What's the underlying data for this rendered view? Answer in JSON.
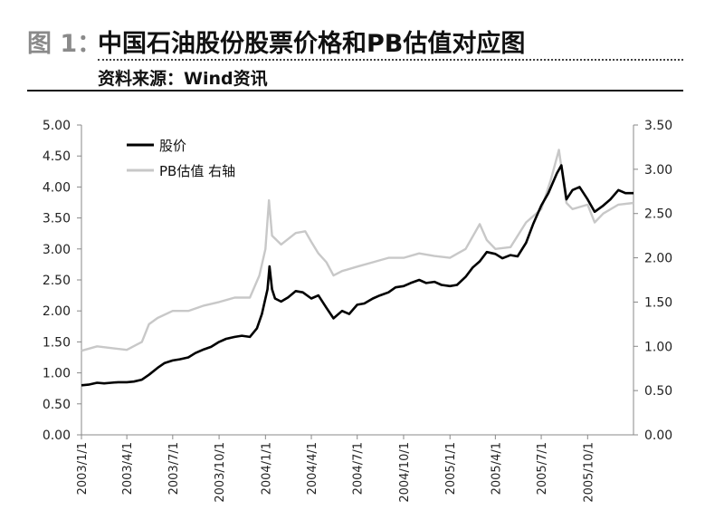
{
  "header": {
    "figure_label": "图 1：",
    "title": "中国石油股份股票价格和PB估值对应图",
    "source": "资料来源：Wind资讯"
  },
  "colors": {
    "price_series": "#000000",
    "pb_series": "#c8c8c8",
    "axis": "#888888"
  },
  "chart_data": {
    "type": "line",
    "x_start": "2003/1/1",
    "x_end": "2005/12/31",
    "x_ticks": [
      "2003/1/1",
      "2003/4/1",
      "2003/7/1",
      "2003/10/1",
      "2004/1/1",
      "2004/4/1",
      "2004/7/1",
      "2004/10/1",
      "2005/1/1",
      "2005/4/1",
      "2005/7/1",
      "2005/10/1"
    ],
    "y_left": {
      "lim": [
        0,
        5
      ],
      "ticks": [
        "0.00",
        "0.50",
        "1.00",
        "1.50",
        "2.00",
        "2.50",
        "3.00",
        "3.50",
        "4.00",
        "4.50",
        "5.00"
      ]
    },
    "y_right": {
      "lim": [
        0,
        3.5
      ],
      "ticks": [
        "0.00",
        "0.50",
        "1.00",
        "1.50",
        "2.00",
        "2.50",
        "3.00",
        "3.50"
      ]
    },
    "grid": false,
    "legend_position": "top-left",
    "series": [
      {
        "name": "股价",
        "axis": "left",
        "points": [
          [
            "2003/1/1",
            0.8
          ],
          [
            "2003/1/15",
            0.81
          ],
          [
            "2003/2/1",
            0.84
          ],
          [
            "2003/2/15",
            0.83
          ],
          [
            "2003/3/1",
            0.84
          ],
          [
            "2003/3/15",
            0.85
          ],
          [
            "2003/4/1",
            0.85
          ],
          [
            "2003/4/15",
            0.86
          ],
          [
            "2003/5/1",
            0.89
          ],
          [
            "2003/5/15",
            0.97
          ],
          [
            "2003/6/1",
            1.08
          ],
          [
            "2003/6/15",
            1.16
          ],
          [
            "2003/7/1",
            1.2
          ],
          [
            "2003/7/15",
            1.22
          ],
          [
            "2003/8/1",
            1.25
          ],
          [
            "2003/8/15",
            1.32
          ],
          [
            "2003/9/1",
            1.38
          ],
          [
            "2003/9/15",
            1.42
          ],
          [
            "2003/10/1",
            1.5
          ],
          [
            "2003/10/15",
            1.55
          ],
          [
            "2003/11/1",
            1.58
          ],
          [
            "2003/11/15",
            1.6
          ],
          [
            "2003/12/1",
            1.58
          ],
          [
            "2003/12/15",
            1.72
          ],
          [
            "2003/12/25",
            1.95
          ],
          [
            "2004/1/5",
            2.35
          ],
          [
            "2004/1/9",
            2.72
          ],
          [
            "2004/1/14",
            2.35
          ],
          [
            "2004/1/20",
            2.2
          ],
          [
            "2004/2/1",
            2.15
          ],
          [
            "2004/2/15",
            2.22
          ],
          [
            "2004/3/1",
            2.32
          ],
          [
            "2004/3/15",
            2.3
          ],
          [
            "2004/4/1",
            2.2
          ],
          [
            "2004/4/15",
            2.25
          ],
          [
            "2004/5/1",
            2.05
          ],
          [
            "2004/5/15",
            1.88
          ],
          [
            "2004/6/1",
            2.0
          ],
          [
            "2004/6/15",
            1.95
          ],
          [
            "2004/7/1",
            2.1
          ],
          [
            "2004/7/15",
            2.12
          ],
          [
            "2004/8/1",
            2.2
          ],
          [
            "2004/8/15",
            2.25
          ],
          [
            "2004/9/1",
            2.3
          ],
          [
            "2004/9/15",
            2.38
          ],
          [
            "2004/10/1",
            2.4
          ],
          [
            "2004/10/15",
            2.45
          ],
          [
            "2004/11/1",
            2.5
          ],
          [
            "2004/11/15",
            2.45
          ],
          [
            "2004/12/1",
            2.47
          ],
          [
            "2004/12/15",
            2.42
          ],
          [
            "2005/1/1",
            2.4
          ],
          [
            "2005/1/15",
            2.42
          ],
          [
            "2005/2/1",
            2.55
          ],
          [
            "2005/2/15",
            2.7
          ],
          [
            "2005/3/1",
            2.8
          ],
          [
            "2005/3/15",
            2.95
          ],
          [
            "2005/4/1",
            2.92
          ],
          [
            "2005/4/15",
            2.85
          ],
          [
            "2005/5/1",
            2.9
          ],
          [
            "2005/5/15",
            2.88
          ],
          [
            "2005/6/1",
            3.1
          ],
          [
            "2005/6/15",
            3.4
          ],
          [
            "2005/7/1",
            3.7
          ],
          [
            "2005/7/15",
            3.9
          ],
          [
            "2005/8/1",
            4.22
          ],
          [
            "2005/8/10",
            4.35
          ],
          [
            "2005/8/20",
            3.8
          ],
          [
            "2005/9/1",
            3.95
          ],
          [
            "2005/9/15",
            4.0
          ],
          [
            "2005/10/1",
            3.8
          ],
          [
            "2005/10/15",
            3.6
          ],
          [
            "2005/11/1",
            3.7
          ],
          [
            "2005/11/15",
            3.8
          ],
          [
            "2005/12/1",
            3.95
          ],
          [
            "2005/12/15",
            3.9
          ],
          [
            "2005/12/31",
            3.9
          ]
        ]
      },
      {
        "name": "PB估值 右轴",
        "axis": "right",
        "points": [
          [
            "2003/1/1",
            0.95
          ],
          [
            "2003/2/1",
            1.0
          ],
          [
            "2003/3/1",
            0.98
          ],
          [
            "2003/4/1",
            0.96
          ],
          [
            "2003/5/1",
            1.05
          ],
          [
            "2003/5/15",
            1.25
          ],
          [
            "2003/6/1",
            1.32
          ],
          [
            "2003/7/1",
            1.4
          ],
          [
            "2003/8/1",
            1.4
          ],
          [
            "2003/9/1",
            1.46
          ],
          [
            "2003/10/1",
            1.5
          ],
          [
            "2003/11/1",
            1.55
          ],
          [
            "2003/12/1",
            1.55
          ],
          [
            "2003/12/20",
            1.8
          ],
          [
            "2004/1/1",
            2.1
          ],
          [
            "2004/1/8",
            2.65
          ],
          [
            "2004/1/14",
            2.25
          ],
          [
            "2004/2/1",
            2.15
          ],
          [
            "2004/3/1",
            2.28
          ],
          [
            "2004/3/20",
            2.3
          ],
          [
            "2004/4/1",
            2.18
          ],
          [
            "2004/4/15",
            2.05
          ],
          [
            "2004/5/1",
            1.95
          ],
          [
            "2004/5/15",
            1.8
          ],
          [
            "2004/6/1",
            1.85
          ],
          [
            "2004/7/1",
            1.9
          ],
          [
            "2004/8/1",
            1.95
          ],
          [
            "2004/9/1",
            2.0
          ],
          [
            "2004/10/1",
            2.0
          ],
          [
            "2004/11/1",
            2.05
          ],
          [
            "2004/12/1",
            2.02
          ],
          [
            "2005/1/1",
            2.0
          ],
          [
            "2005/2/1",
            2.1
          ],
          [
            "2005/3/1",
            2.38
          ],
          [
            "2005/3/15",
            2.2
          ],
          [
            "2005/4/1",
            2.1
          ],
          [
            "2005/5/1",
            2.12
          ],
          [
            "2005/6/1",
            2.4
          ],
          [
            "2005/7/1",
            2.55
          ],
          [
            "2005/7/20",
            2.88
          ],
          [
            "2005/8/5",
            3.22
          ],
          [
            "2005/8/20",
            2.62
          ],
          [
            "2005/9/1",
            2.55
          ],
          [
            "2005/10/1",
            2.6
          ],
          [
            "2005/10/15",
            2.4
          ],
          [
            "2005/11/1",
            2.5
          ],
          [
            "2005/12/1",
            2.6
          ],
          [
            "2005/12/31",
            2.62
          ]
        ]
      }
    ]
  }
}
